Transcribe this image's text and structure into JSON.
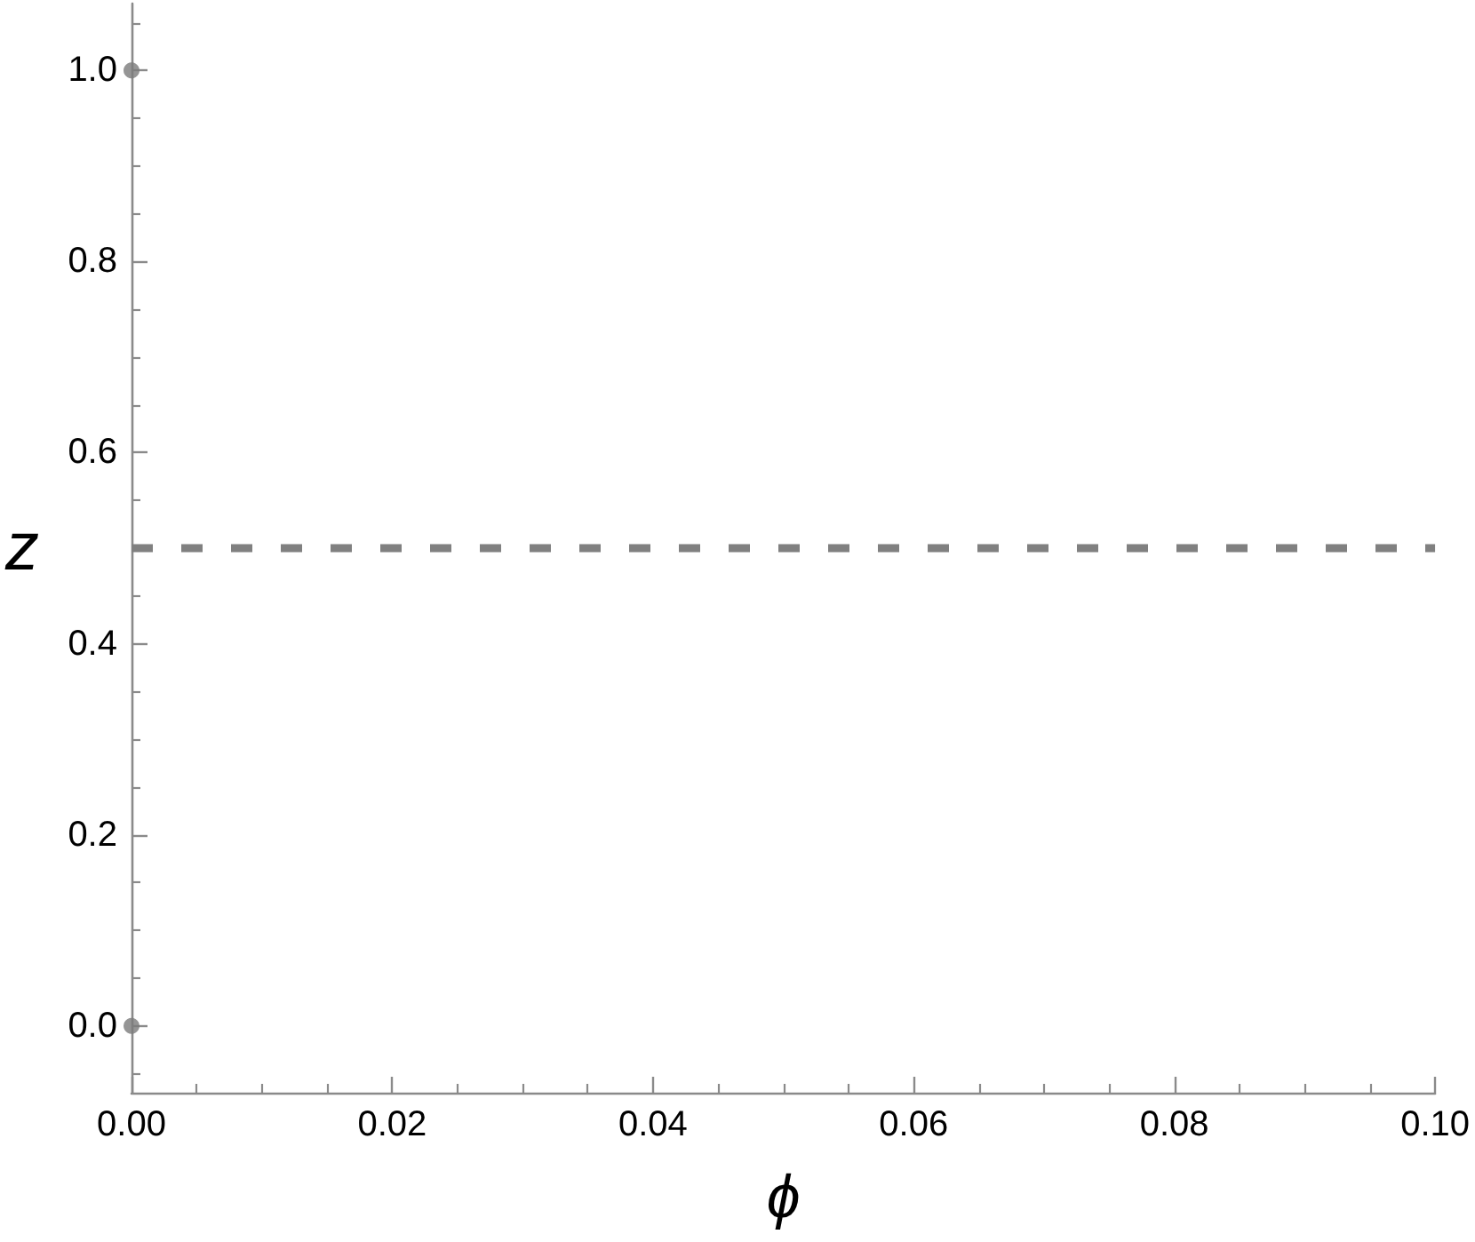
{
  "chart_data": {
    "type": "scatter",
    "xlabel": "ϕ",
    "ylabel": "z",
    "x": [
      0,
      0
    ],
    "values": [
      1,
      0
    ],
    "color": "#7a7a7a",
    "marker": "circle",
    "grid": false,
    "xlim": [
      0,
      0.1
    ],
    "xticks": [
      {
        "value": 0,
        "label": "0.00"
      },
      {
        "value": 0.005,
        "label": null
      },
      {
        "value": 0.01,
        "label": null
      },
      {
        "value": 0.015,
        "label": null
      },
      0.02,
      {
        "value": 0.025,
        "label": null
      },
      {
        "value": 0.03,
        "label": null
      },
      {
        "value": 0.035,
        "label": null
      },
      0.04,
      {
        "value": 0.045,
        "label": null
      },
      {
        "value": 0.05,
        "label": null
      },
      {
        "value": 0.055,
        "label": null
      },
      0.06,
      {
        "value": 0.065,
        "label": null
      },
      {
        "value": 0.07,
        "label": null
      },
      {
        "value": 0.075,
        "label": null
      },
      0.08,
      {
        "value": 0.085,
        "label": null
      },
      {
        "value": 0.09,
        "label": null
      },
      {
        "value": 0.095,
        "label": null
      },
      {
        "value": 0.1,
        "label": "0.10"
      }
    ],
    "ylim": [
      -0.07,
      1.07
    ],
    "yticks": [
      {
        "value": -0.05,
        "label": null
      },
      {
        "value": 0,
        "label": "0.0"
      },
      {
        "value": 0.05,
        "label": null
      },
      {
        "value": 0.1,
        "label": null
      },
      {
        "value": 0.15,
        "label": null
      },
      0.2,
      {
        "value": 0.25,
        "label": null
      },
      {
        "value": 0.3,
        "label": null
      },
      {
        "value": 0.35,
        "label": null
      },
      0.4,
      {
        "value": 0.45,
        "label": null
      },
      {
        "value": 0.5,
        "label": null
      },
      {
        "value": 0.55,
        "label": null
      },
      0.6,
      {
        "value": 0.65,
        "label": null
      },
      {
        "value": 0.7,
        "label": null
      },
      {
        "value": 0.75,
        "label": null
      },
      0.8,
      {
        "value": 0.85,
        "label": null
      },
      {
        "value": 0.9,
        "label": null
      },
      {
        "value": 0.95,
        "label": null
      },
      {
        "value": 1,
        "label": "1.0"
      },
      {
        "value": 1.05,
        "label": null
      }
    ],
    "ref_lines": [
      {
        "axis": "y",
        "value": 0.5,
        "color": "#808080",
        "line_style": "dashed"
      }
    ]
  }
}
